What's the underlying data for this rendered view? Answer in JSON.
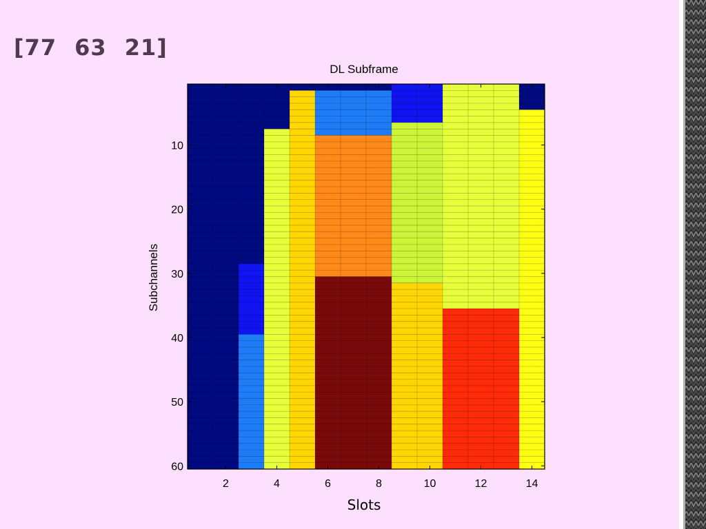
{
  "slide": {
    "title_parts": [
      "[77",
      "63",
      "21]"
    ]
  },
  "chart_data": {
    "type": "heatmap",
    "title": "DL Subframe",
    "xlabel": "Slots",
    "ylabel": "Subchannels",
    "x_ticks": [
      2,
      4,
      6,
      8,
      10,
      12,
      14
    ],
    "y_ticks": [
      10,
      20,
      30,
      40,
      50,
      60
    ],
    "x_range": [
      0.5,
      14.5
    ],
    "y_range": [
      0.5,
      60.5
    ],
    "y_reversed": true,
    "regions": [
      {
        "slots": [
          1,
          3
        ],
        "subchannels": [
          1,
          29
        ],
        "color": "#000a80"
      },
      {
        "slots": [
          1,
          2
        ],
        "subchannels": [
          29,
          60
        ],
        "color": "#000a80"
      },
      {
        "slots": [
          3,
          3
        ],
        "subchannels": [
          29,
          39
        ],
        "color": "#0f14f0"
      },
      {
        "slots": [
          3,
          3
        ],
        "subchannels": [
          40,
          60
        ],
        "color": "#1f7cf7"
      },
      {
        "slots": [
          4,
          4
        ],
        "subchannels": [
          1,
          7
        ],
        "color": "#000a80"
      },
      {
        "slots": [
          4,
          4
        ],
        "subchannels": [
          8,
          60
        ],
        "color": "#e6ff3a"
      },
      {
        "slots": [
          5,
          5
        ],
        "subchannels": [
          1,
          1
        ],
        "color": "#000a80"
      },
      {
        "slots": [
          5,
          5
        ],
        "subchannels": [
          2,
          60
        ],
        "color": "#ffd600"
      },
      {
        "slots": [
          6,
          8
        ],
        "subchannels": [
          1,
          1
        ],
        "color": "#000a80"
      },
      {
        "slots": [
          6,
          8
        ],
        "subchannels": [
          2,
          8
        ],
        "color": "#1f7cf7"
      },
      {
        "slots": [
          6,
          8
        ],
        "subchannels": [
          9,
          30
        ],
        "color": "#ff8a1a"
      },
      {
        "slots": [
          6,
          8
        ],
        "subchannels": [
          31,
          60
        ],
        "color": "#7a0a0a"
      },
      {
        "slots": [
          9,
          10
        ],
        "subchannels": [
          1,
          6
        ],
        "color": "#0f14f0"
      },
      {
        "slots": [
          9,
          10
        ],
        "subchannels": [
          7,
          31
        ],
        "color": "#ccf53a"
      },
      {
        "slots": [
          9,
          10
        ],
        "subchannels": [
          32,
          60
        ],
        "color": "#ffd600"
      },
      {
        "slots": [
          11,
          13
        ],
        "subchannels": [
          1,
          35
        ],
        "color": "#e6ff3a"
      },
      {
        "slots": [
          11,
          13
        ],
        "subchannels": [
          36,
          60
        ],
        "color": "#ff2a08"
      },
      {
        "slots": [
          14,
          14
        ],
        "subchannels": [
          1,
          4
        ],
        "color": "#000a80"
      },
      {
        "slots": [
          14,
          14
        ],
        "subchannels": [
          5,
          60
        ],
        "color": "#ffff14"
      }
    ],
    "grid": true
  }
}
